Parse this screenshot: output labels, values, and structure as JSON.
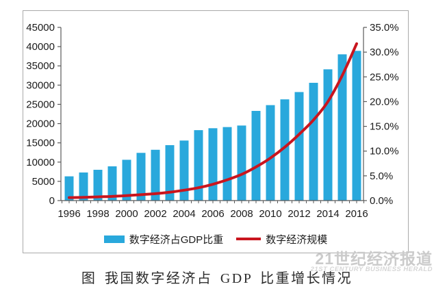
{
  "figure": {
    "caption": "图 我国数字经济占 GDP 比重增长情况",
    "watermark_cn": "21世纪经济报道",
    "watermark_en": "21ST CENTURY BUSINESS HERALD"
  },
  "legend": {
    "bar_label": "数字经济占GDP比重",
    "line_label": "数字经济规模"
  },
  "colors": {
    "bar": "#29a8dc",
    "line": "#c9151e",
    "axis": "#595959",
    "tick_text": "#1a1a1a",
    "border": "#a9a9a9",
    "watermark": "#cbcbcb",
    "watermark_en": "#d6d6d6"
  },
  "chart_data": {
    "type": "bar",
    "subtype": "bar+line combo, dual axis",
    "title": "图 我国数字经济占 GDP 比重增长情况",
    "xlabel": "",
    "ylabel_left": "",
    "ylabel_right": "",
    "grid": false,
    "legend_position": "bottom",
    "categories": [
      1996,
      1997,
      1998,
      1999,
      2000,
      2001,
      2002,
      2003,
      2004,
      2005,
      2006,
      2007,
      2008,
      2009,
      2010,
      2011,
      2012,
      2013,
      2014,
      2015,
      2016
    ],
    "x_axis_labels": [
      "1996",
      "1998",
      "2000",
      "2002",
      "2004",
      "2006",
      "2008",
      "2010",
      "2012",
      "2014",
      "2016"
    ],
    "left_axis": {
      "min": 0,
      "max": 45000,
      "step": 5000,
      "tick_labels": [
        "45000",
        "40000",
        "35000",
        "30000",
        "25000",
        "20000",
        "15000",
        "10000",
        "5000",
        "0"
      ]
    },
    "right_axis": {
      "min": 0,
      "max": 35,
      "step": 5,
      "tick_labels": [
        "35.0%",
        "30.0%",
        "25.0%",
        "20.0%",
        "15.0%",
        "10.0%",
        "5.0%",
        "0.0%"
      ]
    },
    "series": [
      {
        "name": "数字经济占GDP比重",
        "type": "bar",
        "axis": "left",
        "values": [
          6300,
          7300,
          8000,
          8900,
          10600,
          12400,
          13200,
          14400,
          15600,
          18300,
          18800,
          19100,
          19500,
          23300,
          24800,
          26300,
          28200,
          30600,
          34100,
          38000,
          38900
        ]
      },
      {
        "name": "数字经济规模",
        "type": "line",
        "axis": "right",
        "values_percent": [
          0.6,
          0.65,
          0.75,
          0.85,
          1.0,
          1.2,
          1.4,
          1.7,
          2.1,
          2.6,
          3.3,
          4.2,
          5.3,
          6.8,
          8.6,
          10.8,
          13.4,
          16.3,
          20.0,
          25.3,
          31.7
        ]
      }
    ]
  }
}
